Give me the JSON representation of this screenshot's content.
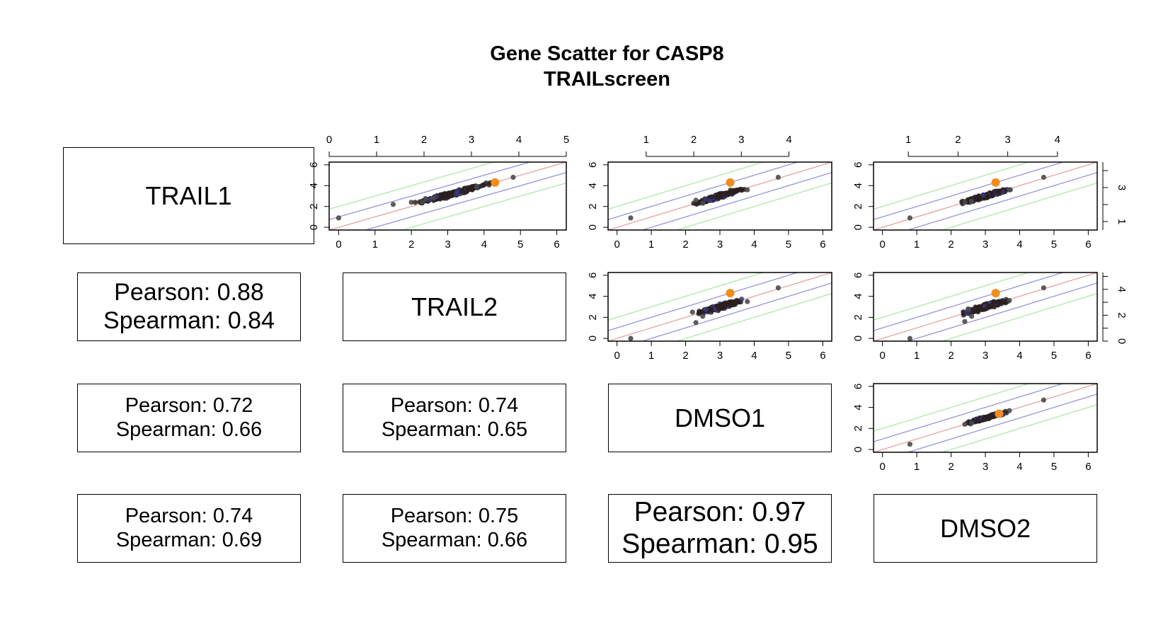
{
  "chart_data": {
    "type": "scatter",
    "title": "Gene Scatter for CASP8",
    "subtitle": "TRAILscreen",
    "samples": [
      "TRAIL1",
      "TRAIL2",
      "DMSO1",
      "DMSO2"
    ],
    "highlight_color": "#f28c1a",
    "point_color": "#2a2020",
    "line_colors": {
      "identity": "#e69a9a",
      "inner_band": "#8c8ce0",
      "outer_band": "#a8e6a0"
    },
    "correlations": [
      {
        "pair": [
          "TRAIL1",
          "TRAIL2"
        ],
        "pearson": "Pearson: 0.88",
        "spearman": "Spearman: 0.84"
      },
      {
        "pair": [
          "TRAIL1",
          "DMSO1"
        ],
        "pearson": "Pearson: 0.72",
        "spearman": "Spearman: 0.66"
      },
      {
        "pair": [
          "TRAIL2",
          "DMSO1"
        ],
        "pearson": "Pearson: 0.74",
        "spearman": "Spearman: 0.65"
      },
      {
        "pair": [
          "TRAIL1",
          "DMSO2"
        ],
        "pearson": "Pearson: 0.74",
        "spearman": "Spearman: 0.69"
      },
      {
        "pair": [
          "TRAIL2",
          "DMSO2"
        ],
        "pearson": "Pearson: 0.75",
        "spearman": "Spearman: 0.66"
      },
      {
        "pair": [
          "DMSO1",
          "DMSO2"
        ],
        "pearson": "Pearson: 0.97",
        "spearman": "Spearman: 0.95"
      }
    ],
    "panels": [
      {
        "id": "r1c2",
        "xlim": [
          0,
          6
        ],
        "ylim": [
          0,
          6
        ],
        "xticks": [
          0,
          1,
          2,
          3,
          4,
          5,
          6
        ],
        "yticks": [
          0,
          2,
          4,
          6
        ],
        "top_ticks": [
          0,
          1,
          2,
          3,
          4,
          5
        ],
        "top_range": [
          0,
          5
        ],
        "points": [
          [
            0,
            0.9
          ],
          [
            1.5,
            2.2
          ],
          [
            2,
            2.4
          ],
          [
            2.3,
            2.4
          ],
          [
            4.8,
            4.8
          ],
          [
            3.8,
            3.9
          ],
          [
            2.4,
            2.7
          ],
          [
            2.6,
            2.8
          ]
        ],
        "cloud_center": [
          3.1,
          3.2
        ],
        "cloud_spread": [
          0.55,
          0.3
        ],
        "highlight": [
          4.3,
          4.3
        ]
      },
      {
        "id": "r1c3",
        "xlim": [
          0,
          6
        ],
        "ylim": [
          0,
          6
        ],
        "xticks": [
          0,
          1,
          2,
          3,
          4,
          5,
          6
        ],
        "yticks": [
          0,
          2,
          4,
          6
        ],
        "top_ticks": [
          1,
          2,
          3,
          4
        ],
        "top_range": [
          0.2,
          4.9
        ],
        "points": [
          [
            0.4,
            0.9
          ],
          [
            4.7,
            4.8
          ],
          [
            2.3,
            2.6
          ],
          [
            2.5,
            2.3
          ],
          [
            3.8,
            3.6
          ]
        ],
        "cloud_center": [
          3.0,
          3.0
        ],
        "cloud_spread": [
          0.4,
          0.3
        ],
        "highlight": [
          3.3,
          4.3
        ]
      },
      {
        "id": "r1c4",
        "xlim": [
          0,
          6
        ],
        "ylim": [
          0,
          6
        ],
        "xticks": [
          0,
          1,
          2,
          3,
          4,
          5,
          6
        ],
        "yticks": [
          0,
          2,
          4,
          6
        ],
        "top_ticks": [
          1,
          2,
          3,
          4
        ],
        "top_range": [
          0.3,
          4.8
        ],
        "right_ticks": [
          1,
          3
        ],
        "right_range": [
          0.5,
          4.5
        ],
        "points": [
          [
            0.8,
            0.9
          ],
          [
            4.7,
            4.8
          ],
          [
            2.4,
            2.4
          ],
          [
            3.7,
            3.6
          ],
          [
            2.6,
            2.5
          ]
        ],
        "cloud_center": [
          3.0,
          3.0
        ],
        "cloud_spread": [
          0.4,
          0.3
        ],
        "highlight": [
          3.3,
          4.3
        ]
      },
      {
        "id": "r2c3",
        "xlim": [
          0,
          6
        ],
        "ylim": [
          0,
          6
        ],
        "xticks": [
          0,
          1,
          2,
          3,
          4,
          5,
          6
        ],
        "yticks": [
          0,
          2,
          4,
          6
        ],
        "bottom_tick_labels": true,
        "points": [
          [
            0.4,
            0
          ],
          [
            4.7,
            4.8
          ],
          [
            2.3,
            1.5
          ],
          [
            2.5,
            2.1
          ],
          [
            2.2,
            2.5
          ],
          [
            3.8,
            3.5
          ]
        ],
        "cloud_center": [
          3.0,
          3.0
        ],
        "cloud_spread": [
          0.4,
          0.35
        ],
        "highlight": [
          3.3,
          4.3
        ]
      },
      {
        "id": "r2c4",
        "xlim": [
          0,
          6
        ],
        "ylim": [
          0,
          6
        ],
        "xticks": [
          0,
          1,
          2,
          3,
          4,
          5,
          6
        ],
        "yticks": [
          0,
          2,
          4,
          6
        ],
        "right_ticks": [
          0,
          2,
          4
        ],
        "right_range": [
          0,
          5.3
        ],
        "points": [
          [
            0.8,
            0
          ],
          [
            4.7,
            4.8
          ],
          [
            2.4,
            1.6
          ],
          [
            2.6,
            2.1
          ],
          [
            2.5,
            2.8
          ],
          [
            3.7,
            3.6
          ]
        ],
        "cloud_center": [
          3.0,
          3.0
        ],
        "cloud_spread": [
          0.4,
          0.35
        ],
        "highlight": [
          3.3,
          4.3
        ]
      },
      {
        "id": "r3c4",
        "xlim": [
          0,
          6
        ],
        "ylim": [
          0,
          6
        ],
        "xticks": [
          0,
          1,
          2,
          3,
          4,
          5,
          6
        ],
        "yticks": [
          0,
          2,
          4,
          6
        ],
        "points": [
          [
            0.8,
            0.5
          ],
          [
            4.7,
            4.7
          ],
          [
            2.4,
            2.4
          ],
          [
            2.6,
            2.5
          ],
          [
            3.7,
            3.7
          ]
        ],
        "cloud_center": [
          3.05,
          3.05
        ],
        "cloud_spread": [
          0.35,
          0.2
        ],
        "highlight": [
          3.4,
          3.4
        ]
      }
    ]
  }
}
